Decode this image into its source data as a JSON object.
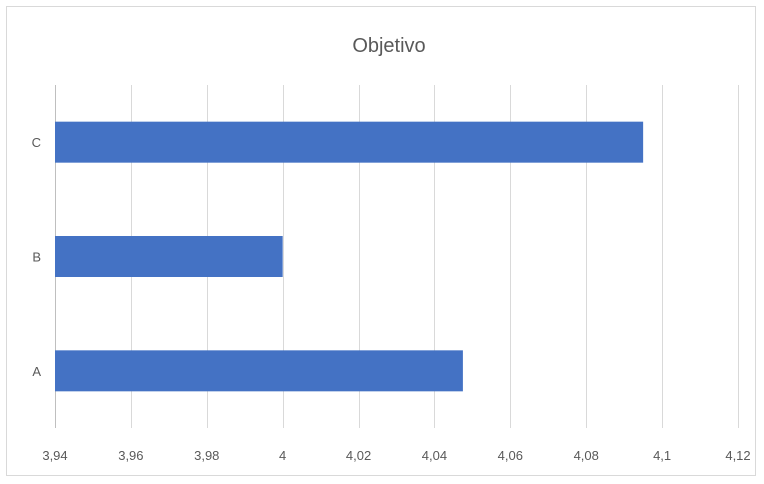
{
  "chart_data": {
    "type": "bar",
    "orientation": "horizontal",
    "title": "Objetivo",
    "xlabel": "",
    "ylabel": "",
    "categories": [
      "A",
      "B",
      "C"
    ],
    "values": [
      4.0475,
      4.0,
      4.095
    ],
    "xlim": [
      3.94,
      4.12
    ],
    "x_ticks": [
      3.94,
      3.96,
      3.98,
      4.0,
      4.02,
      4.04,
      4.06,
      4.08,
      4.1,
      4.12
    ],
    "x_tick_labels": [
      "3,94",
      "3,96",
      "3,98",
      "4",
      "4,02",
      "4,04",
      "4,06",
      "4,08",
      "4,1",
      "4,12"
    ],
    "grid": "vertical",
    "legend": "none",
    "bar_color": "#4472c4"
  }
}
